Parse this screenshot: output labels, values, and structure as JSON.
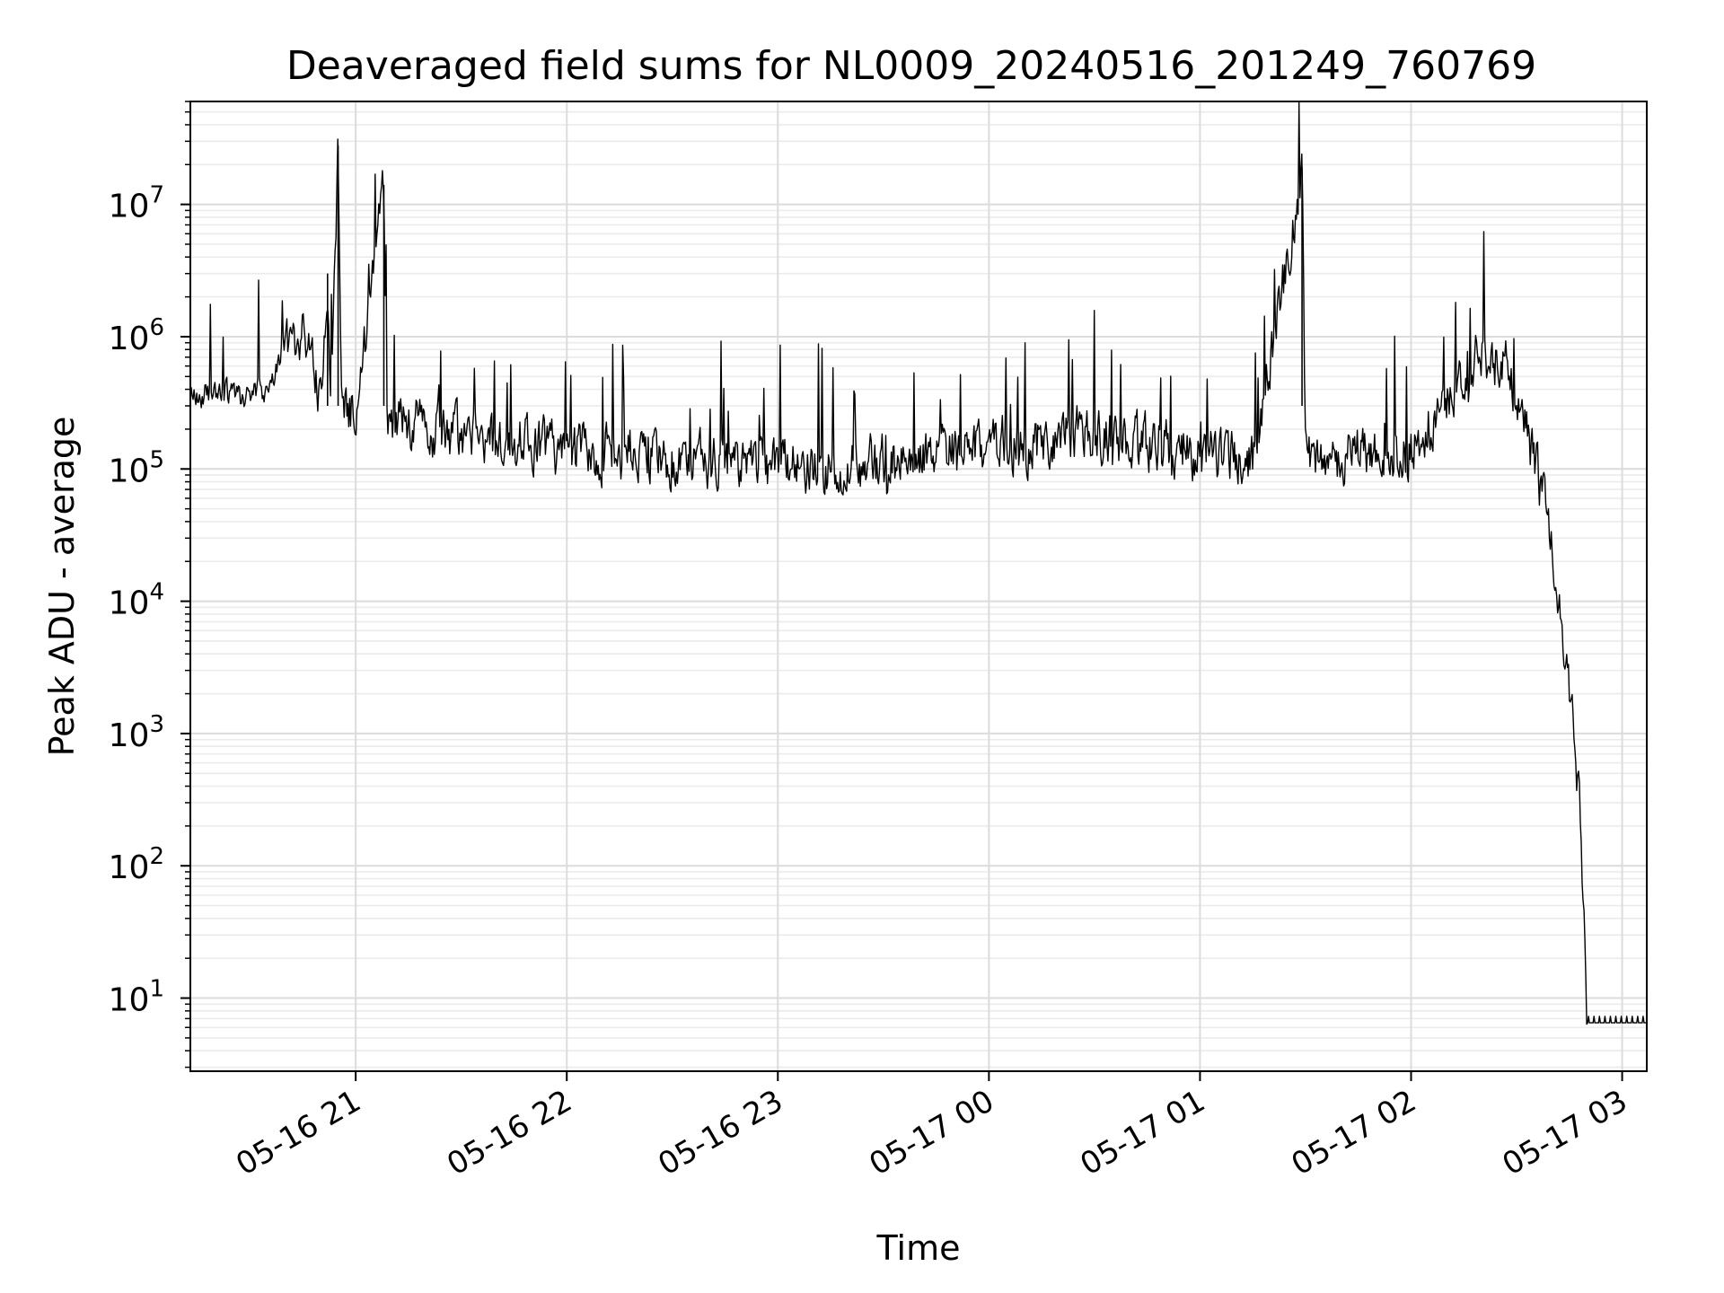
{
  "chart_data": {
    "type": "line",
    "title": "Deaveraged field sums for NL0009_20240516_201249_760769",
    "xlabel": "Time",
    "ylabel": "Peak ADU - average",
    "x_range": [
      "2024-05-16T20:13:00",
      "2024-05-17T03:07:00"
    ],
    "x_ticks": [
      "05-16 21",
      "05-16 22",
      "05-16 23",
      "05-17 00",
      "05-17 01",
      "05-17 02",
      "05-17 03"
    ],
    "y_scale": "log",
    "ylim": [
      2.8,
      60000000
    ],
    "y_ticks": [
      {
        "value": 10,
        "base": "10",
        "exp": "1"
      },
      {
        "value": 100,
        "base": "10",
        "exp": "2"
      },
      {
        "value": 1000,
        "base": "10",
        "exp": "3"
      },
      {
        "value": 10000,
        "base": "10",
        "exp": "4"
      },
      {
        "value": 100000,
        "base": "10",
        "exp": "5"
      },
      {
        "value": 1000000,
        "base": "10",
        "exp": "6"
      },
      {
        "value": 10000000,
        "base": "10",
        "exp": "7"
      }
    ],
    "grid": true,
    "line_color": "#000000",
    "series": [
      {
        "values_note": "Peak ADU minus average",
        "points": [
          [
            "2024-05-16T20:13:00",
            350000
          ],
          [
            "2024-05-16T20:20:00",
            380000
          ],
          [
            "2024-05-16T20:28:00",
            340000
          ],
          [
            "2024-05-16T20:35:00",
            420000
          ],
          [
            "2024-05-16T20:40:00",
            900000
          ],
          [
            "2024-05-16T20:45:00",
            1000000
          ],
          [
            "2024-05-16T20:48:00",
            700000
          ],
          [
            "2024-05-16T20:50:00",
            350000
          ],
          [
            "2024-05-16T20:52:00",
            3000000
          ],
          [
            "2024-05-16T20:53:00",
            400000
          ],
          [
            "2024-05-16T20:55:00",
            28000000
          ],
          [
            "2024-05-16T20:56:00",
            350000
          ],
          [
            "2024-05-16T21:00:00",
            250000
          ],
          [
            "2024-05-16T21:08:00",
            14000000
          ],
          [
            "2024-05-16T21:09:00",
            220000
          ],
          [
            "2024-05-16T21:30:00",
            180000
          ],
          [
            "2024-05-16T22:00:00",
            140000
          ],
          [
            "2024-05-16T22:30:00",
            120000
          ],
          [
            "2024-05-16T23:00:00",
            100000
          ],
          [
            "2024-05-16T23:30:00",
            110000
          ],
          [
            "2024-05-17T00:00:00",
            140000
          ],
          [
            "2024-05-17T00:30:00",
            190000
          ],
          [
            "2024-05-17T01:00:00",
            130000
          ],
          [
            "2024-05-17T01:15:00",
            110000
          ],
          [
            "2024-05-17T01:29:00",
            19000000
          ],
          [
            "2024-05-17T01:30:00",
            120000
          ],
          [
            "2024-05-17T02:00:00",
            140000
          ],
          [
            "2024-05-17T02:10:00",
            350000
          ],
          [
            "2024-05-17T02:20:00",
            700000
          ],
          [
            "2024-05-17T02:28:00",
            550000
          ],
          [
            "2024-05-17T02:35:00",
            120000
          ],
          [
            "2024-05-17T02:40:00",
            30000
          ],
          [
            "2024-05-17T02:45:00",
            2000
          ],
          [
            "2024-05-17T02:48:00",
            300
          ],
          [
            "2024-05-17T02:50:00",
            6.5
          ],
          [
            "2024-05-17T03:07:00",
            6.5
          ]
        ]
      }
    ]
  }
}
